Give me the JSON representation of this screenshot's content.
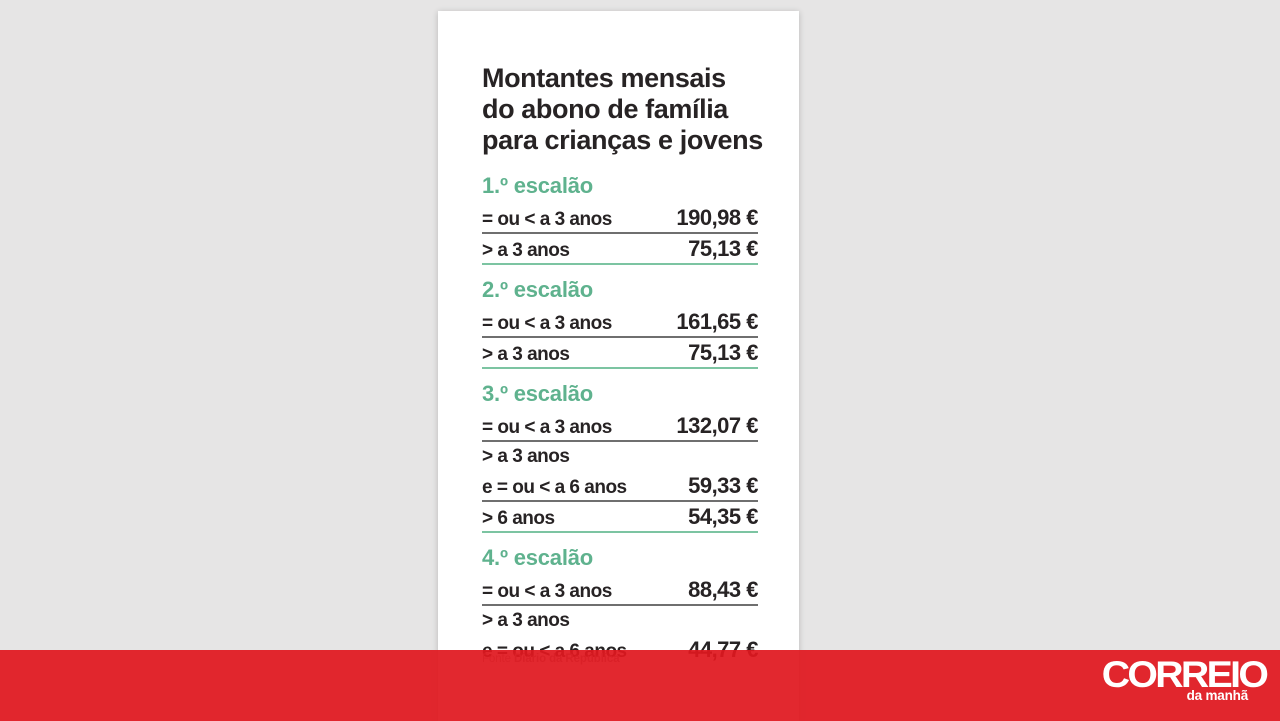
{
  "card": {
    "title_lines": [
      "Montantes mensais",
      "do abono de família",
      "para crianças e jovens"
    ],
    "groups": [
      {
        "header": "1.º escalão",
        "rows": [
          {
            "label": "= ou < a 3 anos",
            "value": "190,98 €",
            "divider": "gray"
          },
          {
            "label": "> a 3 anos",
            "value": "75,13 €",
            "divider": "green"
          }
        ]
      },
      {
        "header": "2.º escalão",
        "rows": [
          {
            "label": "= ou < a 3 anos",
            "value": "161,65 €",
            "divider": "gray"
          },
          {
            "label": "> a 3 anos",
            "value": "75,13 €",
            "divider": "green"
          }
        ]
      },
      {
        "header": "3.º escalão",
        "rows": [
          {
            "label": "= ou < a 3 anos",
            "value": "132,07 €",
            "divider": "gray"
          },
          {
            "label": "> a 3 anos",
            "value": "",
            "divider": "none"
          },
          {
            "label": "e = ou < a 6 anos",
            "value": "59,33 €",
            "divider": "gray"
          },
          {
            "label": "> 6 anos",
            "value": "54,35 €",
            "divider": "green"
          }
        ]
      },
      {
        "header": "4.º escalão",
        "rows": [
          {
            "label": "= ou < a 3 anos",
            "value": "88,43 €",
            "divider": "gray"
          },
          {
            "label": "> a 3 anos",
            "value": "",
            "divider": "none"
          },
          {
            "label": "e = ou < a 6 anos",
            "value": "44,77 €",
            "divider": "none"
          }
        ]
      }
    ],
    "source_prefix": "Fonte",
    "source_name": "Diário da República"
  },
  "footer": {
    "logo_main": "CORREIO",
    "logo_sub": "da manhã"
  },
  "colors": {
    "page_background": "#e6e5e5",
    "card_background": "#ffffff",
    "text_dark": "#272324",
    "accent_green": "#5fb28e",
    "divider_gray": "#6f6f6f",
    "divider_green": "#7cc4a2",
    "footer_red": "rgba(224,24,31,0.93)",
    "source_gray": "#9a9a9a"
  },
  "chart_data": {
    "type": "table",
    "title": "Montantes mensais do abono de família para crianças e jovens",
    "unit": "EUR/month",
    "groups": [
      {
        "name": "1.º escalão",
        "rows": [
          {
            "bracket": "= ou < a 3 anos",
            "amount": 190.98
          },
          {
            "bracket": "> a 3 anos",
            "amount": 75.13
          }
        ]
      },
      {
        "name": "2.º escalão",
        "rows": [
          {
            "bracket": "= ou < a 3 anos",
            "amount": 161.65
          },
          {
            "bracket": "> a 3 anos",
            "amount": 75.13
          }
        ]
      },
      {
        "name": "3.º escalão",
        "rows": [
          {
            "bracket": "= ou < a 3 anos",
            "amount": 132.07
          },
          {
            "bracket": "> a 3 anos e = ou < a 6 anos",
            "amount": 59.33
          },
          {
            "bracket": "> 6 anos",
            "amount": 54.35
          }
        ]
      },
      {
        "name": "4.º escalão",
        "rows": [
          {
            "bracket": "= ou < a 3 anos",
            "amount": 88.43
          },
          {
            "bracket": "> a 3 anos e = ou < a 6 anos",
            "amount": 44.77
          }
        ]
      }
    ],
    "source": "Diário da República"
  }
}
